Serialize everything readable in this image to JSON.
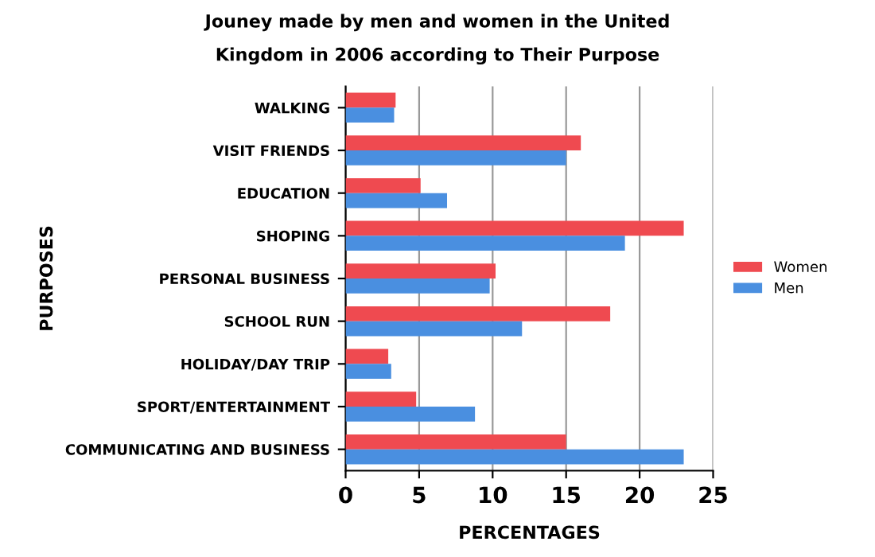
{
  "chart_data": {
    "type": "bar",
    "orientation": "horizontal",
    "title": "Jouney made by men and women in the United\nKingdom in 2006 according to Their Purpose",
    "xlabel": "PERCENTAGES",
    "ylabel": "PURPOSES",
    "categories": [
      "WALKING",
      "VISIT FRIENDS",
      "EDUCATION",
      "SHOPING",
      "PERSONAL BUSINESS",
      "SCHOOL RUN",
      "HOLIDAY/DAY TRIP",
      "SPORT/ENTERTAINMENT",
      "COMMUNICATING AND BUSINESS"
    ],
    "series": [
      {
        "name": "Women",
        "color": "#ef4a50",
        "values": [
          3.4,
          16,
          5.1,
          23,
          10.2,
          18,
          2.9,
          4.8,
          15
        ]
      },
      {
        "name": "Men",
        "color": "#4a8fe0",
        "values": [
          3.3,
          15,
          6.9,
          19,
          9.8,
          12,
          3.1,
          8.8,
          23
        ]
      }
    ],
    "xlim": [
      0,
      25
    ],
    "xticks": [
      0,
      5,
      10,
      15,
      20,
      25
    ],
    "grid": "x",
    "legend": "right"
  }
}
